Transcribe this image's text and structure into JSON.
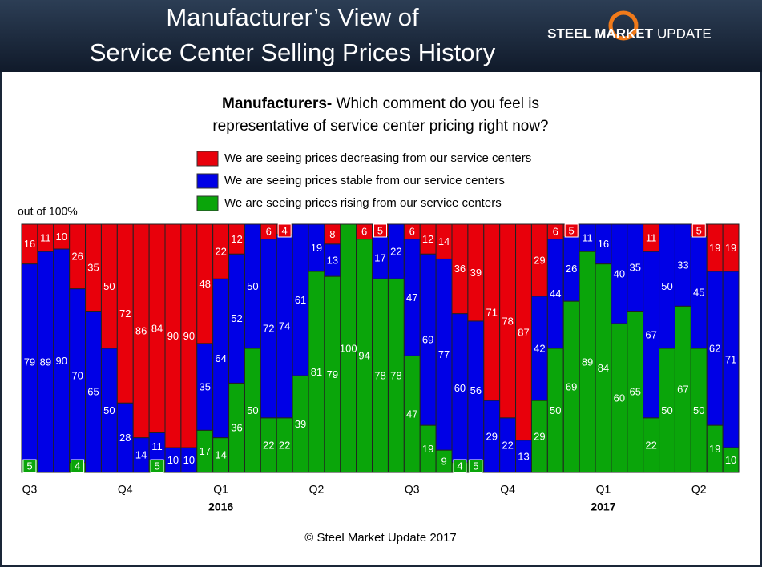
{
  "header": {
    "title_lines": [
      "Manufacturer’s View of",
      "Service Center Selling Prices History"
    ],
    "logo_bold": "STEEL MARKET",
    "logo_light": "UPDATE"
  },
  "chart_data": {
    "type": "stacked_bar",
    "subtitle_bold": "Manufacturers-",
    "subtitle_lines": [
      "Which comment do you feel is",
      "representative of service center pricing right now?"
    ],
    "y_label": "out of 100%",
    "footer": "© Steel Market Update 2017",
    "ylim": [
      0,
      100
    ],
    "categories": [
      "Q3",
      null,
      null,
      null,
      null,
      null,
      "Q4",
      null,
      null,
      null,
      null,
      null,
      "Q1",
      null,
      null,
      null,
      null,
      null,
      "Q2",
      null,
      null,
      null,
      null,
      null,
      "Q3",
      null,
      null,
      null,
      null,
      null,
      "Q4",
      null,
      null,
      null,
      null,
      null,
      "Q1",
      null,
      null,
      null,
      null,
      null,
      "Q2",
      null,
      null
    ],
    "years": [
      null,
      null,
      null,
      null,
      null,
      null,
      null,
      null,
      null,
      null,
      null,
      null,
      "2016",
      null,
      null,
      null,
      null,
      null,
      null,
      null,
      null,
      null,
      null,
      null,
      null,
      null,
      null,
      null,
      null,
      null,
      null,
      null,
      null,
      null,
      null,
      null,
      "2017",
      null,
      null,
      null,
      null,
      null,
      null,
      null,
      null
    ],
    "series": [
      {
        "name": "We are seeing prices decreasing from our service centers",
        "color": "#e8000b",
        "values": [
          16,
          11,
          10,
          26,
          35,
          50,
          72,
          86,
          84,
          90,
          90,
          48,
          22,
          12,
          0,
          6,
          4,
          0,
          0,
          8,
          0,
          6,
          5,
          0,
          6,
          12,
          14,
          36,
          39,
          71,
          78,
          87,
          29,
          6,
          5,
          0,
          0,
          0,
          0,
          11,
          0,
          0,
          5,
          19,
          19
        ]
      },
      {
        "name": "We are seeing prices stable from our service centers",
        "color": "#0000e6",
        "values": [
          79,
          89,
          90,
          70,
          65,
          50,
          28,
          14,
          11,
          10,
          10,
          35,
          64,
          52,
          50,
          72,
          74,
          61,
          19,
          13,
          0,
          0,
          17,
          22,
          47,
          69,
          77,
          60,
          56,
          29,
          22,
          13,
          42,
          44,
          26,
          11,
          16,
          40,
          35,
          67,
          50,
          33,
          45,
          62,
          71
        ]
      },
      {
        "name": "We are seeing prices rising from our service centers",
        "color": "#0aa50a",
        "values": [
          5,
          0,
          0,
          4,
          0,
          0,
          0,
          0,
          5,
          0,
          0,
          17,
          14,
          36,
          50,
          22,
          22,
          39,
          81,
          79,
          100,
          94,
          78,
          78,
          47,
          19,
          9,
          4,
          5,
          0,
          0,
          0,
          29,
          50,
          69,
          89,
          84,
          60,
          65,
          22,
          50,
          67,
          50,
          19,
          10
        ]
      }
    ]
  }
}
